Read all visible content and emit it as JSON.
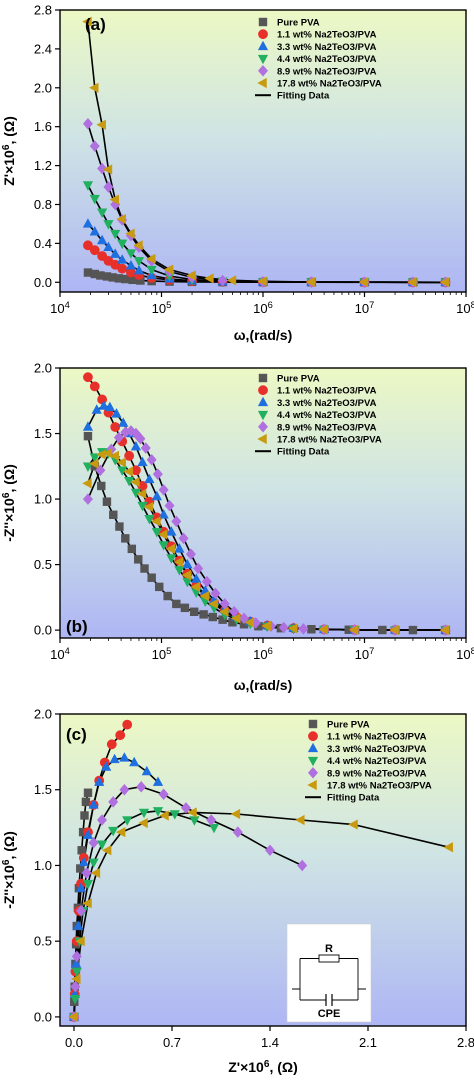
{
  "chart_data": [
    {
      "type": "scatter",
      "panel_label": "(a)",
      "xlabel": "ω,(rad/s)",
      "ylabel": "Z'×10⁶, (Ω)",
      "xscale": "log",
      "xlim": [
        10000,
        100000000
      ],
      "ylim": [
        -0.1,
        2.8
      ],
      "x_ticks": [
        10000,
        100000,
        1000000,
        10000000,
        100000000
      ],
      "x_tick_labels": [
        "10⁴",
        "10⁵",
        "10⁶",
        "10⁷",
        "10⁸"
      ],
      "y_ticks": [
        0.0,
        0.4,
        0.8,
        1.2,
        1.6,
        2.0,
        2.4,
        2.8
      ],
      "y_tick_labels": [
        "0.0",
        "0.4",
        "0.8",
        "1.2",
        "1.6",
        "2.0",
        "2.4",
        "2.8"
      ],
      "legend_position": "top-right",
      "series": [
        {
          "name": "Pure PVA",
          "color": "#555555",
          "marker": "square",
          "x": [
            18850,
            22000,
            25000,
            29000,
            33000,
            38000,
            44000,
            52000,
            62000,
            80000,
            120000,
            200000,
            400000,
            1000000,
            3000000,
            10000000,
            30000000,
            62800000
          ],
          "y": [
            0.1,
            0.085,
            0.07,
            0.06,
            0.05,
            0.04,
            0.033,
            0.025,
            0.018,
            0.012,
            0.007,
            0.004,
            0.002,
            0.001,
            0.0005,
            0.0002,
            0.0001,
            0.0001
          ]
        },
        {
          "name": "1.1 wt% Na2TeO3/PVA",
          "color": "#e8302a",
          "marker": "circle",
          "x": [
            18850,
            22000,
            26000,
            30000,
            35000,
            41000,
            50000,
            60000,
            80000,
            120000,
            200000,
            400000,
            1000000,
            3000000,
            10000000,
            30000000,
            62800000
          ],
          "y": [
            0.38,
            0.33,
            0.27,
            0.22,
            0.18,
            0.14,
            0.1,
            0.075,
            0.045,
            0.025,
            0.012,
            0.005,
            0.002,
            0.001,
            0.0005,
            0.0002,
            0.0001
          ]
        },
        {
          "name": "3.3 wt% Na2TeO3/PVA",
          "color": "#1e6fe0",
          "marker": "triangle-up",
          "x": [
            18850,
            22000,
            26000,
            30000,
            35000,
            41000,
            50000,
            60000,
            80000,
            120000,
            200000,
            400000,
            1000000,
            3000000,
            10000000,
            30000000,
            62800000
          ],
          "y": [
            0.6,
            0.52,
            0.43,
            0.36,
            0.29,
            0.23,
            0.17,
            0.12,
            0.07,
            0.035,
            0.015,
            0.006,
            0.002,
            0.001,
            0.0005,
            0.0002,
            0.0001
          ]
        },
        {
          "name": "4.4 wt% Na2TeO3/PVA",
          "color": "#20b060",
          "marker": "triangle-down",
          "x": [
            18850,
            22000,
            26000,
            30000,
            35000,
            41000,
            50000,
            60000,
            80000,
            120000,
            200000,
            400000,
            1000000,
            3000000,
            10000000,
            30000000,
            62800000
          ],
          "y": [
            1.0,
            0.86,
            0.72,
            0.6,
            0.5,
            0.4,
            0.3,
            0.22,
            0.13,
            0.065,
            0.028,
            0.01,
            0.004,
            0.0015,
            0.0005,
            0.0002,
            0.0001
          ]
        },
        {
          "name": "8.9 wt% Na2TeO3/PVA",
          "color": "#b070e0",
          "marker": "diamond",
          "x": [
            18850,
            22000,
            26000,
            30000,
            35000,
            41000,
            50000,
            60000,
            80000,
            120000,
            200000,
            400000,
            1000000,
            3000000,
            10000000,
            30000000,
            62800000
          ],
          "y": [
            1.63,
            1.4,
            1.17,
            0.98,
            0.8,
            0.64,
            0.48,
            0.36,
            0.22,
            0.11,
            0.05,
            0.018,
            0.006,
            0.002,
            0.0008,
            0.0003,
            0.0001
          ]
        },
        {
          "name": "17.8 wt% Na2TeO3/PVA",
          "color": "#c89a10",
          "marker": "triangle-left",
          "x": [
            18850,
            22000,
            26000,
            30000,
            35000,
            41000,
            50000,
            60000,
            80000,
            120000,
            200000,
            300000,
            500000,
            1000000,
            3000000,
            10000000,
            30000000,
            62800000
          ],
          "y": [
            2.68,
            2.0,
            1.62,
            1.16,
            0.85,
            0.65,
            0.5,
            0.38,
            0.24,
            0.13,
            0.07,
            0.04,
            0.02,
            0.01,
            0.003,
            0.001,
            0.0004,
            0.0002
          ]
        }
      ],
      "fit_label": "Fitting Data"
    },
    {
      "type": "scatter",
      "panel_label": "(b)",
      "xlabel": "ω,(rad/s)",
      "ylabel": "-Z''×10⁶, (Ω)",
      "xscale": "log",
      "xlim": [
        10000,
        100000000
      ],
      "ylim": [
        -0.06,
        2.0
      ],
      "x_ticks": [
        10000,
        100000,
        1000000,
        10000000,
        100000000
      ],
      "x_tick_labels": [
        "10⁴",
        "10⁵",
        "10⁶",
        "10⁷",
        "10⁸"
      ],
      "y_ticks": [
        0.0,
        0.5,
        1.0,
        1.5,
        2.0
      ],
      "y_tick_labels": [
        "0.0",
        "0.5",
        "1.0",
        "1.5",
        "2.0"
      ],
      "legend_position": "top-right",
      "series": [
        {
          "name": "Pure PVA",
          "color": "#555555",
          "marker": "square",
          "x": [
            18850,
            22000,
            25500,
            29000,
            33500,
            38500,
            44000,
            51000,
            59000,
            68000,
            80000,
            95000,
            115000,
            140000,
            170000,
            210000,
            260000,
            320000,
            400000,
            500000,
            650000,
            900000,
            1500000,
            3000000,
            7000000,
            15000000,
            30000000,
            62800000
          ],
          "y": [
            1.48,
            1.25,
            1.1,
            0.98,
            0.88,
            0.79,
            0.7,
            0.62,
            0.54,
            0.47,
            0.4,
            0.33,
            0.26,
            0.2,
            0.17,
            0.14,
            0.12,
            0.1,
            0.08,
            0.06,
            0.045,
            0.03,
            0.015,
            0.007,
            0.003,
            0.001,
            0.0005,
            0.0002
          ]
        },
        {
          "name": "1.1 wt% Na2TeO3/PVA",
          "color": "#e8302a",
          "marker": "circle",
          "x": [
            18850,
            22000,
            26000,
            30000,
            35000,
            41000,
            48000,
            56000,
            65000,
            76000,
            90000,
            105000,
            125000,
            150000,
            180000,
            220000,
            270000,
            330000,
            420000,
            550000,
            750000,
            1100000,
            2000000,
            4000000,
            8000000,
            20000000,
            62800000
          ],
          "y": [
            1.93,
            1.86,
            1.76,
            1.66,
            1.55,
            1.44,
            1.33,
            1.22,
            1.1,
            0.98,
            0.86,
            0.75,
            0.64,
            0.53,
            0.43,
            0.34,
            0.27,
            0.21,
            0.15,
            0.1,
            0.065,
            0.035,
            0.015,
            0.006,
            0.002,
            0.0008,
            0.0002
          ]
        },
        {
          "name": "3.3 wt% Na2TeO3/PVA",
          "color": "#1e6fe0",
          "marker": "triangle-up",
          "x": [
            18850,
            23000,
            27000,
            31000,
            36000,
            42000,
            48000,
            56000,
            65000,
            76000,
            90000,
            105000,
            125000,
            150000,
            180000,
            220000,
            270000,
            330000,
            420000,
            550000,
            750000,
            1100000,
            2000000,
            4000000,
            8000000,
            20000000,
            62800000
          ],
          "y": [
            1.55,
            1.68,
            1.71,
            1.7,
            1.65,
            1.58,
            1.5,
            1.4,
            1.28,
            1.15,
            1.02,
            0.88,
            0.75,
            0.62,
            0.5,
            0.39,
            0.3,
            0.23,
            0.16,
            0.1,
            0.065,
            0.035,
            0.015,
            0.006,
            0.002,
            0.0008,
            0.0002
          ]
        },
        {
          "name": "4.4 wt% Na2TeO3/PVA",
          "color": "#20b060",
          "marker": "triangle-down",
          "x": [
            18850,
            22000,
            26000,
            30000,
            35000,
            41000,
            48000,
            56000,
            65000,
            76000,
            90000,
            105000,
            125000,
            150000,
            180000,
            220000,
            270000,
            330000,
            420000,
            550000,
            750000,
            1100000,
            2000000,
            4000000,
            8000000,
            20000000,
            62800000
          ],
          "y": [
            1.25,
            1.32,
            1.36,
            1.35,
            1.3,
            1.22,
            1.14,
            1.05,
            0.95,
            0.85,
            0.75,
            0.65,
            0.55,
            0.46,
            0.37,
            0.29,
            0.22,
            0.17,
            0.12,
            0.08,
            0.05,
            0.028,
            0.012,
            0.005,
            0.002,
            0.0008,
            0.0002
          ]
        },
        {
          "name": "8.9 wt% Na2TeO3/PVA",
          "color": "#b070e0",
          "marker": "diamond",
          "x": [
            18850,
            25000,
            32000,
            38000,
            44000,
            50000,
            56000,
            62000,
            70000,
            80000,
            92000,
            105000,
            120000,
            140000,
            165000,
            195000,
            230000,
            280000,
            340000,
            420000,
            520000,
            650000,
            850000,
            1200000,
            1600000,
            2500000,
            4000000,
            8000000,
            20000000,
            62800000
          ],
          "y": [
            1.0,
            1.22,
            1.38,
            1.47,
            1.51,
            1.52,
            1.5,
            1.46,
            1.39,
            1.3,
            1.19,
            1.07,
            0.95,
            0.83,
            0.7,
            0.58,
            0.47,
            0.37,
            0.28,
            0.2,
            0.14,
            0.09,
            0.055,
            0.03,
            0.02,
            0.01,
            0.005,
            0.002,
            0.0008,
            0.0002
          ]
        },
        {
          "name": "17.8 wt% Na2TeO3/PVA",
          "color": "#c89a10",
          "marker": "triangle-left",
          "x": [
            18850,
            22000,
            26000,
            30000,
            35000,
            41000,
            48000,
            56000,
            65000,
            76000,
            90000,
            105000,
            125000,
            150000,
            180000,
            220000,
            270000,
            330000,
            420000,
            550000,
            750000,
            1100000,
            2000000,
            4000000,
            8000000,
            20000000,
            62800000
          ],
          "y": [
            1.12,
            1.27,
            1.34,
            1.35,
            1.33,
            1.28,
            1.21,
            1.13,
            1.04,
            0.94,
            0.83,
            0.73,
            0.62,
            0.52,
            0.42,
            0.33,
            0.26,
            0.2,
            0.14,
            0.09,
            0.058,
            0.032,
            0.013,
            0.005,
            0.002,
            0.0008,
            0.0002
          ]
        }
      ],
      "fit_label": "Fitting Data"
    },
    {
      "type": "scatter",
      "panel_label": "(c)",
      "xlabel": "Z'×10⁶, (Ω)",
      "ylabel": "-Z''×10⁶, (Ω)",
      "xscale": "linear",
      "xlim": [
        -0.1,
        2.8
      ],
      "ylim": [
        -0.06,
        2.0
      ],
      "x_ticks": [
        0.0,
        0.7,
        1.4,
        2.1,
        2.8
      ],
      "x_tick_labels": [
        "0.0",
        "0.7",
        "1.4",
        "2.1",
        "2.8"
      ],
      "y_ticks": [
        0.0,
        0.5,
        1.0,
        1.5,
        2.0
      ],
      "y_tick_labels": [
        "0.0",
        "0.5",
        "1.0",
        "1.5",
        "2.0"
      ],
      "legend_position": "top-right",
      "series": [
        {
          "name": "Pure PVA",
          "color": "#555555",
          "marker": "square",
          "x": [
            0.0,
            0.002,
            0.005,
            0.01,
            0.015,
            0.02,
            0.028,
            0.035,
            0.045,
            0.055,
            0.065,
            0.075,
            0.085,
            0.1
          ],
          "y": [
            0.0,
            0.1,
            0.2,
            0.35,
            0.48,
            0.6,
            0.72,
            0.85,
            0.98,
            1.1,
            1.22,
            1.33,
            1.42,
            1.48
          ]
        },
        {
          "name": "1.1 wt% Na2TeO3/PVA",
          "color": "#e8302a",
          "marker": "circle",
          "x": [
            0.0,
            0.005,
            0.01,
            0.02,
            0.035,
            0.05,
            0.07,
            0.1,
            0.14,
            0.18,
            0.22,
            0.27,
            0.33,
            0.38
          ],
          "y": [
            0.0,
            0.15,
            0.3,
            0.5,
            0.7,
            0.88,
            1.05,
            1.22,
            1.4,
            1.56,
            1.68,
            1.8,
            1.86,
            1.93
          ]
        },
        {
          "name": "3.3 wt% Na2TeO3/PVA",
          "color": "#1e6fe0",
          "marker": "triangle-up",
          "x": [
            0.0,
            0.006,
            0.015,
            0.03,
            0.05,
            0.07,
            0.1,
            0.14,
            0.18,
            0.23,
            0.29,
            0.36,
            0.43,
            0.52,
            0.6
          ],
          "y": [
            0.0,
            0.15,
            0.35,
            0.6,
            0.85,
            1.02,
            1.2,
            1.4,
            1.55,
            1.65,
            1.7,
            1.71,
            1.68,
            1.62,
            1.55
          ]
        },
        {
          "name": "4.4 wt% Na2TeO3/PVA",
          "color": "#20b060",
          "marker": "triangle-down",
          "x": [
            0.0,
            0.008,
            0.02,
            0.04,
            0.065,
            0.1,
            0.14,
            0.2,
            0.28,
            0.38,
            0.5,
            0.6,
            0.72,
            0.86,
            1.0
          ],
          "y": [
            0.0,
            0.12,
            0.3,
            0.5,
            0.7,
            0.88,
            1.02,
            1.14,
            1.23,
            1.3,
            1.35,
            1.36,
            1.34,
            1.3,
            1.25
          ]
        },
        {
          "name": "8.9 wt% Na2TeO3/PVA",
          "color": "#b070e0",
          "marker": "diamond",
          "x": [
            0.0,
            0.01,
            0.02,
            0.05,
            0.09,
            0.14,
            0.2,
            0.28,
            0.36,
            0.48,
            0.64,
            0.8,
            0.98,
            1.17,
            1.4,
            1.63
          ],
          "y": [
            0.0,
            0.2,
            0.4,
            0.7,
            0.95,
            1.15,
            1.3,
            1.42,
            1.5,
            1.52,
            1.47,
            1.38,
            1.3,
            1.22,
            1.1,
            1.0
          ]
        },
        {
          "name": "17.8 wt% Na2TeO3/PVA",
          "color": "#c89a10",
          "marker": "triangle-left",
          "x": [
            0.0,
            0.02,
            0.05,
            0.1,
            0.16,
            0.24,
            0.34,
            0.5,
            0.65,
            0.85,
            1.16,
            1.62,
            2.0,
            2.68
          ],
          "y": [
            0.0,
            0.25,
            0.5,
            0.75,
            0.95,
            1.1,
            1.22,
            1.28,
            1.33,
            1.35,
            1.34,
            1.3,
            1.27,
            1.12
          ]
        }
      ],
      "fit_label": "Fitting Data",
      "inset": {
        "resistor_label": "R",
        "cpe_label": "CPE"
      }
    }
  ]
}
